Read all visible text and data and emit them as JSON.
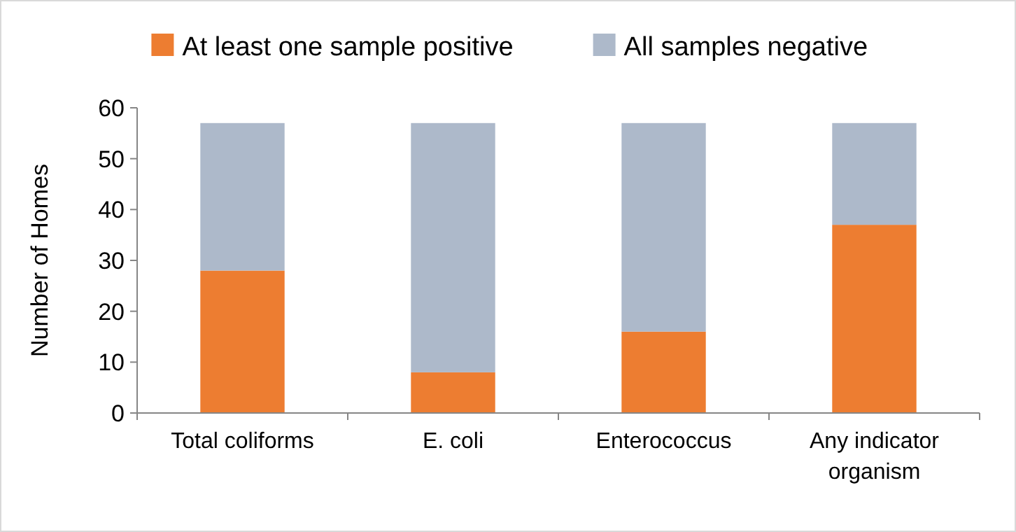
{
  "chart_data": {
    "type": "bar",
    "stacked": true,
    "ylabel": "Number of Homes",
    "categories": [
      "Total coliforms",
      "E. coli",
      "Enterococcus",
      "Any indicator organism"
    ],
    "series": [
      {
        "name": "At least one sample positive",
        "color": "#ed7d31",
        "values": [
          28,
          8,
          16,
          37
        ]
      },
      {
        "name": "All samples negative",
        "color": "#adb9ca",
        "values": [
          29,
          49,
          41,
          20
        ]
      }
    ],
    "ylim": [
      0,
      60
    ],
    "yticks": [
      0,
      10,
      20,
      30,
      40,
      50,
      60
    ],
    "grid": false,
    "legend": "top"
  }
}
